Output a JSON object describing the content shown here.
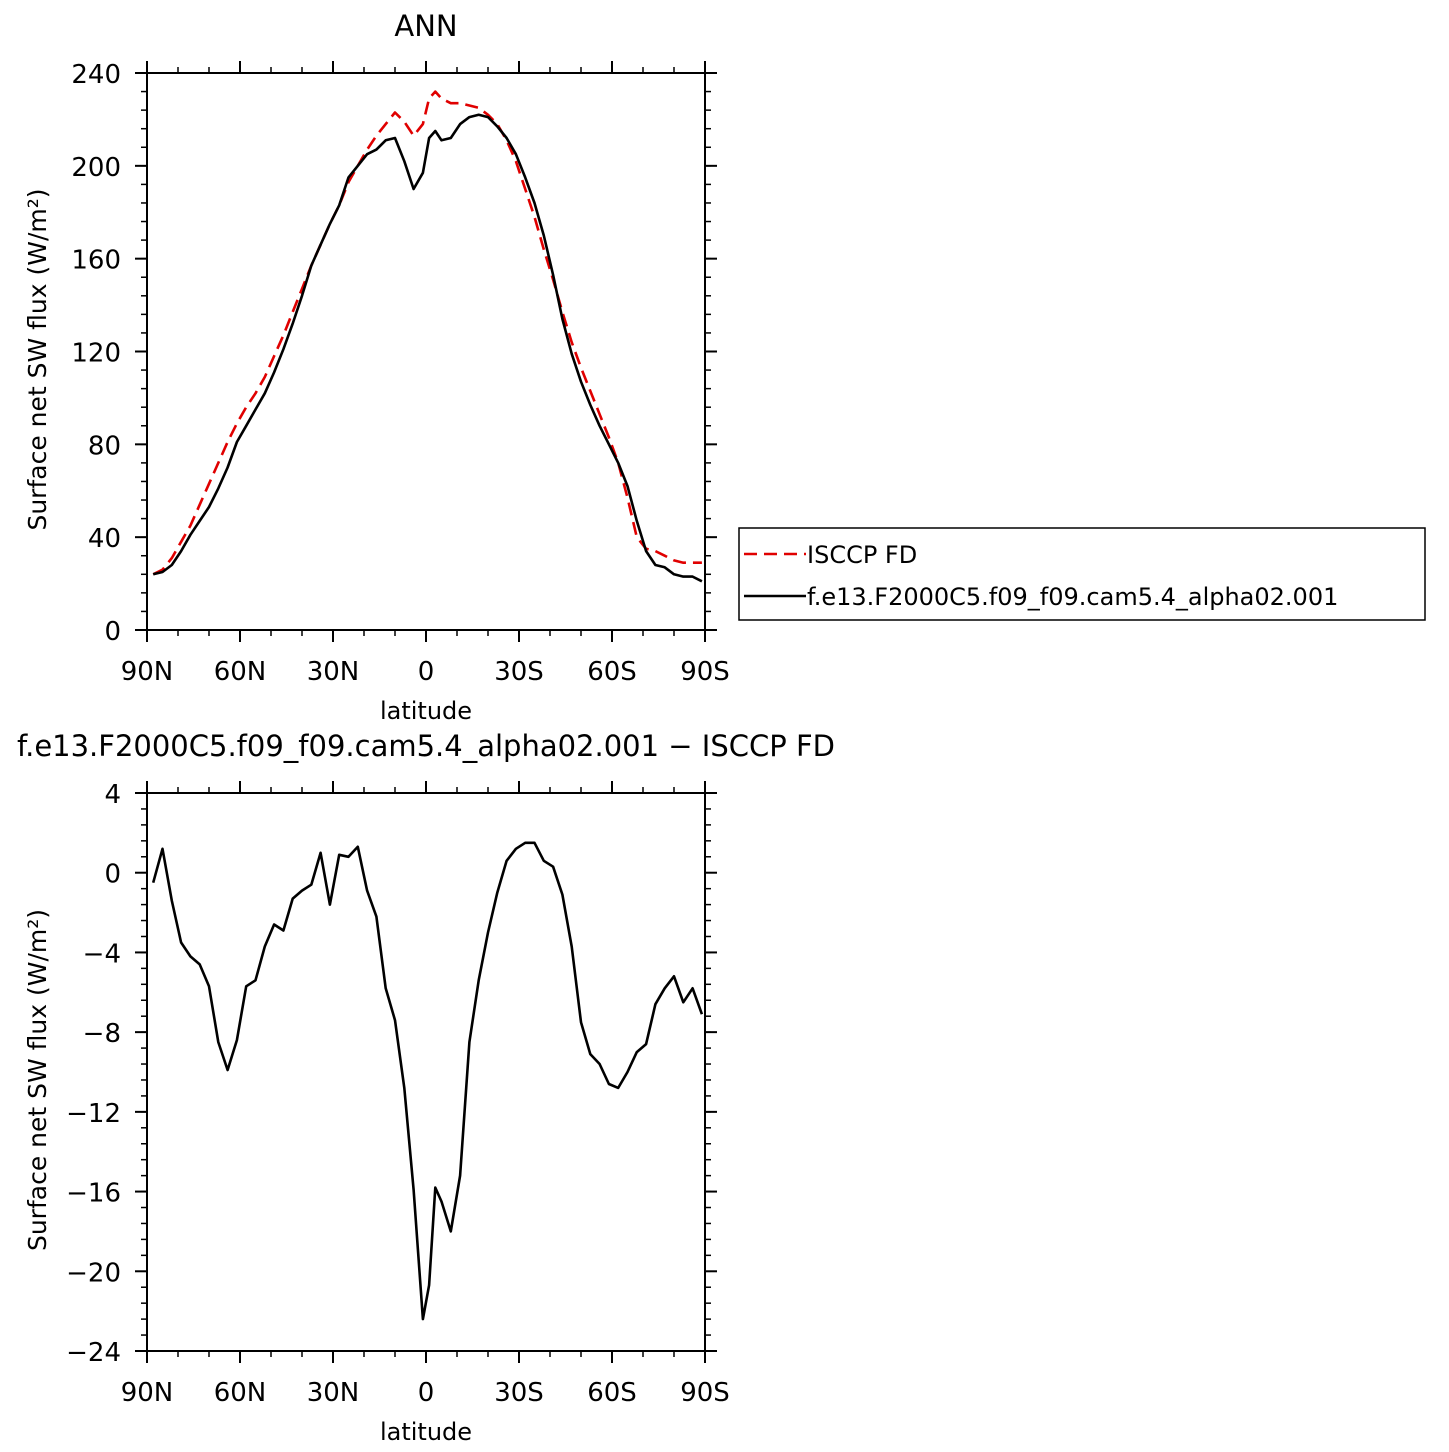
{
  "chart_data": [
    {
      "type": "line",
      "title": "ANN",
      "xlabel": "latitude",
      "ylabel": "Surface net SW flux (W/m²)",
      "ylim": [
        0,
        240
      ],
      "xlim": [
        90,
        -90
      ],
      "x_ticks": [
        90,
        60,
        30,
        0,
        -30,
        -60,
        -90
      ],
      "x_tick_labels": [
        "90N",
        "60N",
        "30N",
        "0",
        "30S",
        "60S",
        "90S"
      ],
      "y_ticks": [
        0,
        40,
        80,
        120,
        160,
        200,
        240
      ],
      "y_tick_labels": [
        "0",
        "40",
        "80",
        "120",
        "160",
        "200",
        "240"
      ],
      "grid": false,
      "legend_position": "right",
      "series": [
        {
          "name": "ISCCP FD",
          "color": "#e00000",
          "dash": true,
          "points": [
            [
              88,
              24
            ],
            [
              85,
              26
            ],
            [
              82,
              31
            ],
            [
              79,
              38
            ],
            [
              76,
              45
            ],
            [
              73,
              54
            ],
            [
              70,
              63
            ],
            [
              67,
              72
            ],
            [
              64,
              81
            ],
            [
              61,
              89
            ],
            [
              58,
              96
            ],
            [
              55,
              102
            ],
            [
              52,
              109
            ],
            [
              49,
              118
            ],
            [
              46,
              127
            ],
            [
              43,
              137
            ],
            [
              40,
              147
            ],
            [
              37,
              157
            ],
            [
              34,
              166
            ],
            [
              31,
              175
            ],
            [
              28,
              183
            ],
            [
              25,
              193
            ],
            [
              22,
              200
            ],
            [
              19,
              207
            ],
            [
              16,
              213
            ],
            [
              13,
              218
            ],
            [
              10,
              223
            ],
            [
              7,
              219
            ],
            [
              4,
              213
            ],
            [
              1,
              218
            ],
            [
              -1,
              229
            ],
            [
              -3,
              232
            ],
            [
              -5,
              229
            ],
            [
              -8,
              227
            ],
            [
              -11,
              227
            ],
            [
              -14,
              226
            ],
            [
              -17,
              225
            ],
            [
              -20,
              222
            ],
            [
              -23,
              218
            ],
            [
              -26,
              211
            ],
            [
              -29,
              202
            ],
            [
              -32,
              190
            ],
            [
              -35,
              178
            ],
            [
              -38,
              164
            ],
            [
              -41,
              151
            ],
            [
              -44,
              137
            ],
            [
              -47,
              124
            ],
            [
              -50,
              113
            ],
            [
              -53,
              103
            ],
            [
              -56,
              93
            ],
            [
              -59,
              83
            ],
            [
              -62,
              72
            ],
            [
              -65,
              57
            ],
            [
              -68,
              40
            ],
            [
              -71,
              35
            ],
            [
              -74,
              34
            ],
            [
              -77,
              32
            ],
            [
              -80,
              30
            ],
            [
              -83,
              29
            ],
            [
              -86,
              29
            ],
            [
              -89,
              29
            ]
          ]
        },
        {
          "name": "f.e13.F2000C5.f09_f09.cam5.4_alpha02.001",
          "color": "#000000",
          "dash": false,
          "points": [
            [
              88,
              24
            ],
            [
              85,
              25
            ],
            [
              82,
              28
            ],
            [
              79,
              34
            ],
            [
              76,
              41
            ],
            [
              73,
              47
            ],
            [
              70,
              53
            ],
            [
              67,
              61
            ],
            [
              64,
              70
            ],
            [
              61,
              81
            ],
            [
              58,
              88
            ],
            [
              55,
              95
            ],
            [
              52,
              102
            ],
            [
              49,
              111
            ],
            [
              46,
              121
            ],
            [
              43,
              132
            ],
            [
              40,
              144
            ],
            [
              37,
              157
            ],
            [
              34,
              166
            ],
            [
              31,
              175
            ],
            [
              28,
              183
            ],
            [
              25,
              195
            ],
            [
              22,
              200
            ],
            [
              19,
              205
            ],
            [
              16,
              207
            ],
            [
              13,
              211
            ],
            [
              10,
              212
            ],
            [
              7,
              202
            ],
            [
              4,
              190
            ],
            [
              1,
              197
            ],
            [
              -1,
              212
            ],
            [
              -3,
              215
            ],
            [
              -5,
              211
            ],
            [
              -8,
              212
            ],
            [
              -11,
              218
            ],
            [
              -14,
              221
            ],
            [
              -17,
              222
            ],
            [
              -20,
              221
            ],
            [
              -23,
              217
            ],
            [
              -26,
              212
            ],
            [
              -29,
              205
            ],
            [
              -32,
              195
            ],
            [
              -35,
              184
            ],
            [
              -38,
              170
            ],
            [
              -41,
              153
            ],
            [
              -44,
              134
            ],
            [
              -47,
              119
            ],
            [
              -50,
              107
            ],
            [
              -53,
              97
            ],
            [
              -56,
              88
            ],
            [
              -59,
              80
            ],
            [
              -62,
              72
            ],
            [
              -65,
              62
            ],
            [
              -68,
              47
            ],
            [
              -71,
              34
            ],
            [
              -74,
              28
            ],
            [
              -77,
              27
            ],
            [
              -80,
              24
            ],
            [
              -83,
              23
            ],
            [
              -86,
              23
            ],
            [
              -89,
              21
            ]
          ]
        }
      ]
    },
    {
      "type": "line",
      "title": "f.e13.F2000C5.f09_f09.cam5.4_alpha02.001 − ISCCP FD",
      "xlabel": "latitude",
      "ylabel": "Surface net SW flux (W/m²)",
      "ylim": [
        -24,
        4
      ],
      "xlim": [
        90,
        -90
      ],
      "x_ticks": [
        90,
        60,
        30,
        0,
        -30,
        -60,
        -90
      ],
      "x_tick_labels": [
        "90N",
        "60N",
        "30N",
        "0",
        "30S",
        "60S",
        "90S"
      ],
      "y_ticks": [
        -24,
        -20,
        -16,
        -12,
        -8,
        -4,
        0,
        4
      ],
      "y_tick_labels": [
        "−24",
        "−20",
        "−16",
        "−12",
        "−8",
        "−4",
        "0",
        "4"
      ],
      "grid": false,
      "series": [
        {
          "color": "#000000",
          "dash": false,
          "points": [
            [
              88,
              -0.5
            ],
            [
              85,
              1.2
            ],
            [
              82,
              -1.4
            ],
            [
              79,
              -3.5
            ],
            [
              76,
              -4.2
            ],
            [
              73,
              -4.6
            ],
            [
              70,
              -5.7
            ],
            [
              67,
              -8.5
            ],
            [
              64,
              -9.9
            ],
            [
              61,
              -8.4
            ],
            [
              58,
              -5.7
            ],
            [
              55,
              -5.4
            ],
            [
              52,
              -3.7
            ],
            [
              49,
              -2.6
            ],
            [
              46,
              -2.9
            ],
            [
              43,
              -1.3
            ],
            [
              40,
              -0.9
            ],
            [
              37,
              -0.6
            ],
            [
              34,
              1.0
            ],
            [
              31,
              -1.6
            ],
            [
              28,
              0.9
            ],
            [
              25,
              0.8
            ],
            [
              22,
              1.3
            ],
            [
              19,
              -0.9
            ],
            [
              16,
              -2.2
            ],
            [
              13,
              -5.8
            ],
            [
              10,
              -7.4
            ],
            [
              7,
              -10.8
            ],
            [
              4,
              -15.9
            ],
            [
              1,
              -22.4
            ],
            [
              -1,
              -20.7
            ],
            [
              -3,
              -15.8
            ],
            [
              -5,
              -16.5
            ],
            [
              -8,
              -18.0
            ],
            [
              -11,
              -15.2
            ],
            [
              -14,
              -8.5
            ],
            [
              -17,
              -5.4
            ],
            [
              -20,
              -3.0
            ],
            [
              -23,
              -1.0
            ],
            [
              -26,
              0.6
            ],
            [
              -29,
              1.2
            ],
            [
              -32,
              1.5
            ],
            [
              -35,
              1.5
            ],
            [
              -38,
              0.6
            ],
            [
              -41,
              0.3
            ],
            [
              -44,
              -1.1
            ],
            [
              -47,
              -3.7
            ],
            [
              -50,
              -7.5
            ],
            [
              -53,
              -9.1
            ],
            [
              -56,
              -9.6
            ],
            [
              -59,
              -10.6
            ],
            [
              -62,
              -10.8
            ],
            [
              -65,
              -10.0
            ],
            [
              -68,
              -9.0
            ],
            [
              -71,
              -8.6
            ],
            [
              -74,
              -6.6
            ],
            [
              -77,
              -5.8
            ],
            [
              -80,
              -5.2
            ],
            [
              -83,
              -6.5
            ],
            [
              -86,
              -5.8
            ],
            [
              -89,
              -7.1
            ]
          ]
        }
      ]
    }
  ]
}
